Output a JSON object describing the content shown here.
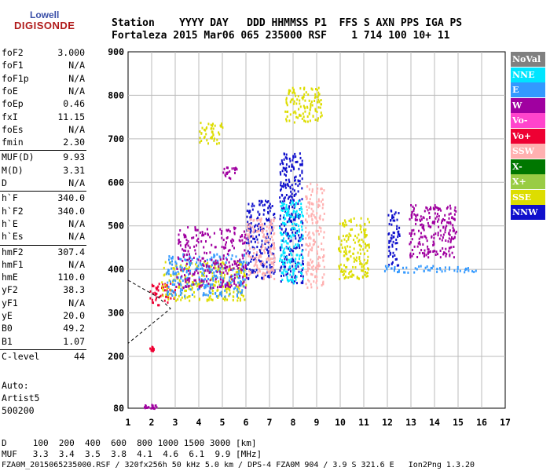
{
  "logo": {
    "line1": "Lowell",
    "line2": "DIGISONDE"
  },
  "header": {
    "line1": "Station    YYYY DAY   DDD HHMMSS P1  FFS S AXN PPS IGA PS",
    "line2": "Fortaleza 2015 Mar06 065 235000 RSF    1 714 100 10+ 11"
  },
  "params": [
    {
      "k": "foF2",
      "v": "3.000"
    },
    {
      "k": "foF1",
      "v": "N/A"
    },
    {
      "k": "foF1p",
      "v": "N/A"
    },
    {
      "k": "foE",
      "v": "N/A"
    },
    {
      "k": "foEp",
      "v": "0.46"
    },
    {
      "k": "fxI",
      "v": "11.15"
    },
    {
      "k": "foEs",
      "v": "N/A"
    },
    {
      "k": "fmin",
      "v": "2.30"
    },
    {
      "k": "MUF(D)",
      "v": "9.93"
    },
    {
      "k": "M(D)",
      "v": "3.31"
    },
    {
      "k": "D",
      "v": "N/A"
    },
    {
      "k": "h`F",
      "v": "340.0"
    },
    {
      "k": "h`F2",
      "v": "340.0"
    },
    {
      "k": "h`E",
      "v": "N/A"
    },
    {
      "k": "h`Es",
      "v": "N/A"
    },
    {
      "k": "hmF2",
      "v": "307.4"
    },
    {
      "k": "hmF1",
      "v": "N/A"
    },
    {
      "k": "hmE",
      "v": "110.0"
    },
    {
      "k": "yF2",
      "v": "38.3"
    },
    {
      "k": "yF1",
      "v": "N/A"
    },
    {
      "k": "yE",
      "v": "20.0"
    },
    {
      "k": "B0",
      "v": "49.2"
    },
    {
      "k": "B1",
      "v": "1.07"
    },
    {
      "k": "C-level",
      "v": "44"
    }
  ],
  "auto": {
    "l1": "Auto:",
    "l2": "Artist5",
    "l3": "500200"
  },
  "legend": [
    {
      "label": "NoVal",
      "color": "#808080"
    },
    {
      "label": "NNE",
      "color": "#00e5ff"
    },
    {
      "label": "E",
      "color": "#3399ff"
    },
    {
      "label": "W",
      "color": "#a000a0"
    },
    {
      "label": "Vo-",
      "color": "#ff44cc"
    },
    {
      "label": "Vo+",
      "color": "#ee0033"
    },
    {
      "label": "SSW",
      "color": "#ffb0b0"
    },
    {
      "label": "X-",
      "color": "#007700"
    },
    {
      "label": "X+",
      "color": "#99cc44"
    },
    {
      "label": "SSE",
      "color": "#dddd00"
    },
    {
      "label": "NNW",
      "color": "#1010cc"
    }
  ],
  "footer": {
    "d_line": "D     100  200  400  600  800 1000 1500 3000 [km]",
    "muf_line": "MUF   3.3  3.4  3.5  3.8  4.1  4.6  6.1  9.9 [MHz]",
    "file_line": "FZA0M_2015065235000.RSF / 320fx256h 50 kHz 5.0 km / DPS-4 FZA0M 904 / 3.9 S 321.6 E   Ion2Png 1.3.20"
  },
  "chart_data": {
    "type": "scatter",
    "xlim": [
      1,
      17
    ],
    "ylim": [
      80,
      900
    ],
    "xticks": [
      "1",
      "2",
      "3",
      "4",
      "5",
      "6",
      "7",
      "8",
      "9",
      "10",
      "11",
      "12",
      "13",
      "14",
      "15",
      "16",
      "17"
    ],
    "yticks": [
      "80",
      "200",
      "300",
      "400",
      "500",
      "600",
      "700",
      "800",
      "900"
    ],
    "grid": true,
    "clusters": [
      {
        "x": [
          1.6,
          2.2
        ],
        "y": [
          80,
          90
        ],
        "color": "#a000a0"
      },
      {
        "x": [
          1.9,
          2.1
        ],
        "y": [
          215,
          225
        ],
        "color": "#ee0033"
      },
      {
        "x": [
          1.9,
          3.0
        ],
        "y": [
          320,
          370
        ],
        "color": "#ee0033"
      },
      {
        "x": [
          2.4,
          6.0
        ],
        "y": [
          330,
          420
        ],
        "color": "#dddd00"
      },
      {
        "x": [
          2.6,
          6.0
        ],
        "y": [
          340,
          440
        ],
        "color": "#3399ff"
      },
      {
        "x": [
          3.0,
          6.0
        ],
        "y": [
          360,
          500
        ],
        "color": "#a000a0"
      },
      {
        "x": [
          4.0,
          5.0
        ],
        "y": [
          690,
          740
        ],
        "color": "#dddd00"
      },
      {
        "x": [
          5.0,
          5.6
        ],
        "y": [
          610,
          640
        ],
        "color": "#a000a0"
      },
      {
        "x": [
          6.0,
          7.2
        ],
        "y": [
          380,
          560
        ],
        "color": "#1010cc"
      },
      {
        "x": [
          6.0,
          7.2
        ],
        "y": [
          380,
          520
        ],
        "color": "#ffb0b0"
      },
      {
        "x": [
          7.4,
          8.4
        ],
        "y": [
          370,
          670
        ],
        "color": "#1010cc"
      },
      {
        "x": [
          7.4,
          8.4
        ],
        "y": [
          370,
          560
        ],
        "color": "#00e5ff"
      },
      {
        "x": [
          7.6,
          9.2
        ],
        "y": [
          740,
          820
        ],
        "color": "#dddd00"
      },
      {
        "x": [
          8.5,
          9.3
        ],
        "y": [
          360,
          600
        ],
        "color": "#ffb0b0"
      },
      {
        "x": [
          9.9,
          11.2
        ],
        "y": [
          380,
          520
        ],
        "color": "#dddd00"
      },
      {
        "x": [
          12.0,
          12.5
        ],
        "y": [
          400,
          540
        ],
        "color": "#1010cc"
      },
      {
        "x": [
          12.9,
          14.9
        ],
        "y": [
          430,
          550
        ],
        "color": "#a000a0"
      },
      {
        "x": [
          11.8,
          15.8
        ],
        "y": [
          395,
          410
        ],
        "color": "#3399ff"
      }
    ]
  }
}
